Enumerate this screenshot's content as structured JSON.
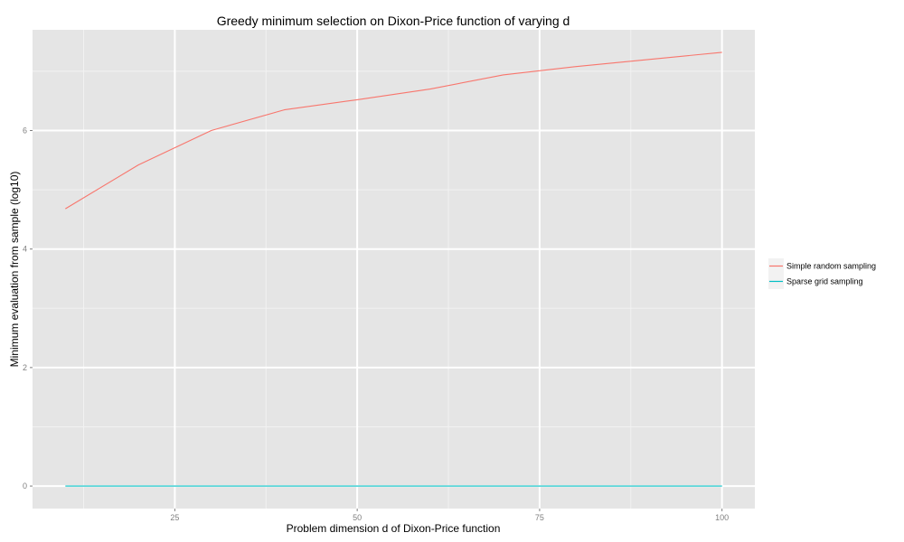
{
  "chart_data": {
    "type": "line",
    "title": "Greedy minimum selection on Dixon-Price function of varying d",
    "xlabel": "Problem dimension d of Dixon-Price function",
    "ylabel": "Minimum evaluation from sample (log10)",
    "x": [
      10,
      20,
      30,
      40,
      50,
      60,
      70,
      80,
      90,
      100
    ],
    "series": [
      {
        "name": "Simple random sampling",
        "color": "#f8766d",
        "values": [
          4.68,
          5.42,
          6.0,
          6.35,
          6.52,
          6.7,
          6.94,
          7.08,
          7.2,
          7.32
        ]
      },
      {
        "name": "Sparse grid sampling",
        "color": "#00bfc4",
        "values": [
          0,
          0,
          0,
          0,
          0,
          0,
          0,
          0,
          0,
          0
        ]
      }
    ],
    "xlim": [
      5.5,
      104.5
    ],
    "ylim": [
      -0.38,
      7.7
    ],
    "x_ticks": [
      25,
      50,
      75,
      100
    ],
    "x_tick_labels": [
      "25",
      "50",
      "75",
      "100"
    ],
    "y_ticks": [
      0,
      2,
      4,
      6
    ],
    "y_tick_labels": [
      "0",
      "2",
      "4",
      "6"
    ],
    "grid": true,
    "legend_position": "right",
    "panel_background": "#e5e5e5",
    "grid_major_color": "#ffffff",
    "grid_minor_color": "#f2f2f2"
  }
}
